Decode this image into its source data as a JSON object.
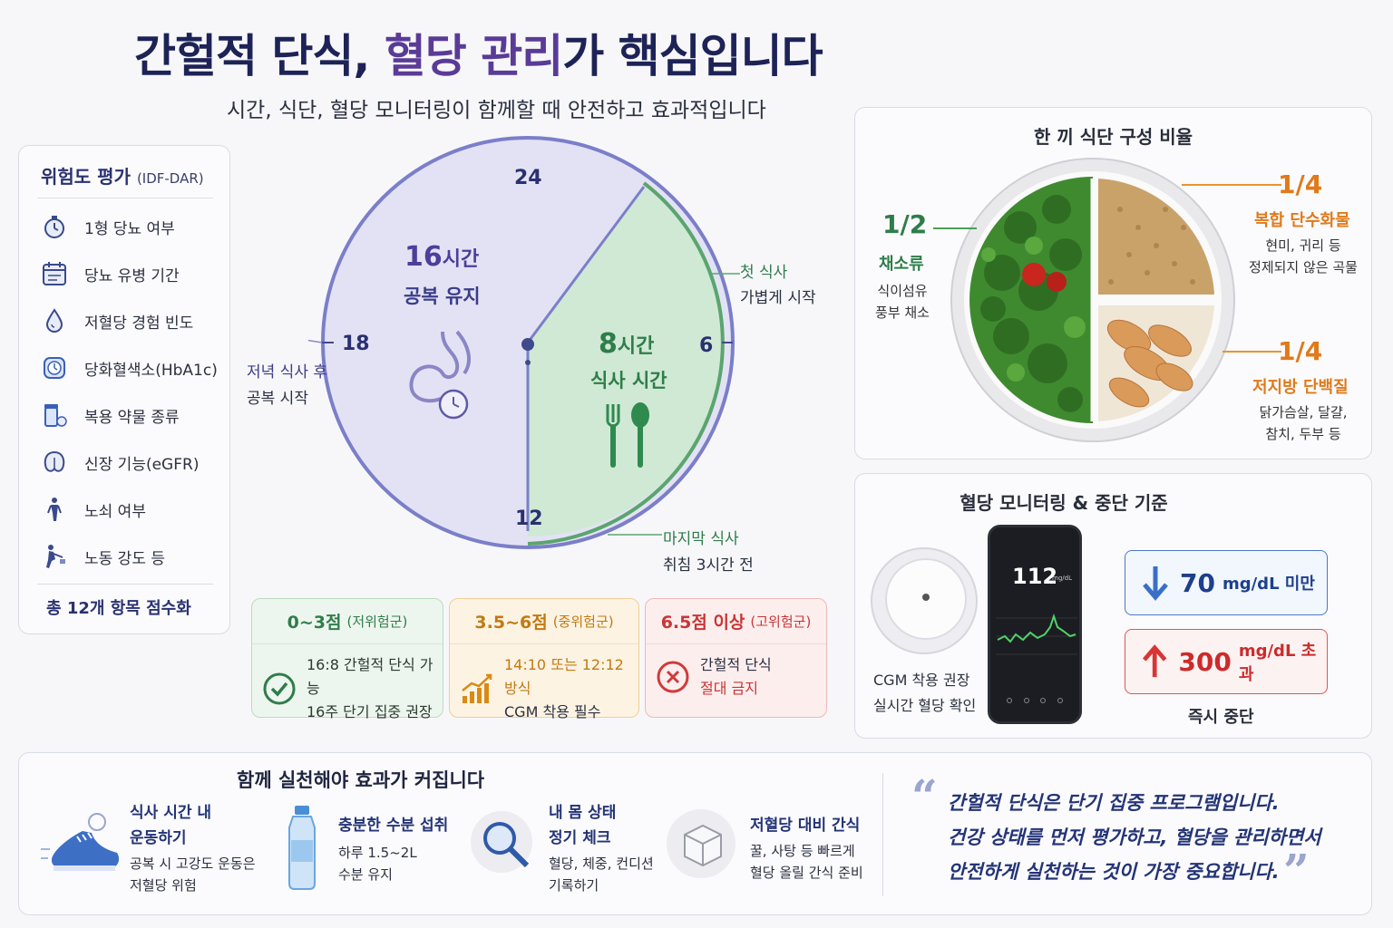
{
  "header": {
    "title_part1": "간헐적 단식, ",
    "title_highlight": "혈당 관리",
    "title_part2": "가 핵심입니다",
    "subtitle": "시간, 식단, 혈당 모니터링이 함께할 때 안전하고 효과적입니다"
  },
  "risk": {
    "title": "위험도 평가",
    "title_sub": "(IDF-DAR)",
    "items": [
      {
        "label": "1형 당뇨 여부",
        "icon": "stopwatch-icon"
      },
      {
        "label": "당뇨 유병 기간",
        "icon": "calendar-icon"
      },
      {
        "label": "저혈당 경험 빈도",
        "icon": "drop-icon"
      },
      {
        "label": "당화혈색소(HbA1c)",
        "icon": "clock-icon"
      },
      {
        "label": "복용 약물 종류",
        "icon": "pill-bottle-icon"
      },
      {
        "label": "신장 기능(eGFR)",
        "icon": "kidney-icon"
      },
      {
        "label": "노쇠 여부",
        "icon": "person-standing-icon"
      },
      {
        "label": "노동 강도 등",
        "icon": "person-working-icon"
      }
    ],
    "total": "총 12개 항목 점수화"
  },
  "clock": {
    "h24": "24",
    "h6": "6",
    "h12": "12",
    "h18": "18",
    "fast_hours": "16",
    "fast_unit": "시간",
    "fast_label": "공복 유지",
    "eat_hours": "8",
    "eat_unit": "시간",
    "eat_label": "식사 시간",
    "first_meal": "첫 식사",
    "first_meal_desc": "가볍게 시작",
    "last_meal": "마지막 식사",
    "last_meal_desc": "취침 3시간 전",
    "after_dinner": "저녁 식사 후",
    "after_dinner_desc": "공복 시작"
  },
  "groups": {
    "low": {
      "score": "0~3점",
      "tag": "(저위험군)",
      "line1": "16:8 간헐적 단식 가능",
      "line2": "16주 단기 집중 권장",
      "icon": "check-circle-icon",
      "color": "#2f7d4a"
    },
    "mid": {
      "score": "3.5~6점",
      "tag": "(중위험군)",
      "line1": "14:10 또는 12:12 방식",
      "line2": "CGM 착용 필수",
      "icon": "trend-chart-icon",
      "color": "#c17a12"
    },
    "high": {
      "score": "6.5점 이상",
      "tag": "(고위험군)",
      "line1": "간헐적 단식",
      "line2": "절대 금지",
      "icon": "x-circle-icon",
      "color": "#c93535"
    }
  },
  "meal": {
    "title": "한 끼 식단 구성 비율",
    "veg": {
      "frac": "1/2",
      "label": "채소류",
      "desc1": "식이섬유",
      "desc2": "풍부 채소"
    },
    "carb": {
      "frac": "1/4",
      "label": "복합 단수화물",
      "desc1": "현미, 귀리 등",
      "desc2": "정제되지 않은 곡물"
    },
    "protein": {
      "frac": "1/4",
      "label": "저지방 단백질",
      "desc1": "닭가슴살, 달걀,",
      "desc2": "참치, 두부 등"
    }
  },
  "glucose": {
    "title": "혈당 모니터링 & 중단 기준",
    "phone_value": "112",
    "phone_unit": "mg/dL",
    "cgm_line1": "CGM 착용 권장",
    "cgm_line2": "실시간 혈당 확인",
    "low_value": "70",
    "low_unit": "mg/dL 미만",
    "high_value": "300",
    "high_unit": "mg/dL 초과",
    "stop": "즉시 중단"
  },
  "tips": {
    "title": "함께 실천해야 효과가 커집니다",
    "items": [
      {
        "t1": "식사 시간 내",
        "t2": "운동하기",
        "d1": "공복 시 고강도 운동은",
        "d2": "저혈당 위험",
        "icon": "sneaker-icon"
      },
      {
        "t1": "충분한 수분 섭취",
        "t2": "",
        "d1": "하루 1.5~2L",
        "d2": "수분 유지",
        "icon": "water-bottle-icon"
      },
      {
        "t1": "내 몸 상태",
        "t2": "정기 체크",
        "d1": "혈당, 체중, 컨디션",
        "d2": "기록하기",
        "icon": "magnifier-icon"
      },
      {
        "t1": "저혈당 대비 간식",
        "t2": "",
        "d1": "꿀, 사탕 등 빠르게",
        "d2": "혈당 올릴 간식 준비",
        "icon": "sugar-cube-icon"
      }
    ],
    "quote1": "간헐적 단식은 단기 집중 프로그램입니다.",
    "quote2": "건강 상태를 먼저 평가하고, 혈당을 관리하면서",
    "quote3": "안전하게 실천하는 것이 가장 중요합니다."
  }
}
